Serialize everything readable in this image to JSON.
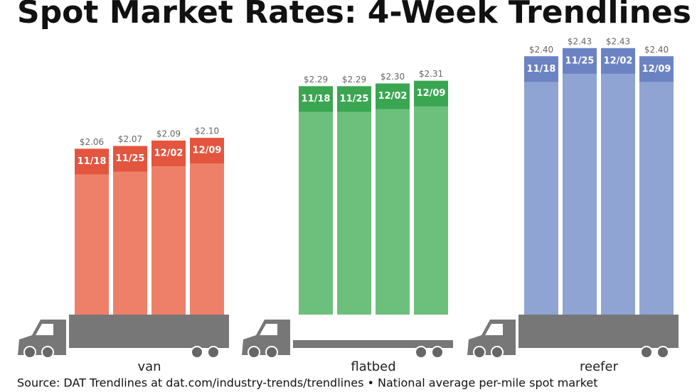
{
  "chart_data": {
    "type": "bar",
    "title": "Spot Market Rates: 4-Week Trendlines",
    "source": "Source: DAT Trendlines at dat.com/industry-trends/trendlines • National average per-mile spot market",
    "categories": [
      "van",
      "flatbed",
      "reefer"
    ],
    "colors": [
      "#ee8069",
      "#6cc07b",
      "#8fa4d2"
    ],
    "band_colors": [
      "#e4553f",
      "#3aa651",
      "#6b83c3"
    ],
    "series": [
      {
        "name": "11/18",
        "values": [
          2.06,
          2.29,
          2.4
        ],
        "value_labels": [
          "$2.06",
          "$2.29",
          "$2.40"
        ]
      },
      {
        "name": "11/25",
        "values": [
          2.07,
          2.29,
          2.43
        ],
        "value_labels": [
          "$2.07",
          "$2.29",
          "$2.43"
        ]
      },
      {
        "name": "12/02",
        "values": [
          2.09,
          2.3,
          2.43
        ],
        "value_labels": [
          "$2.09",
          "$2.30",
          "$2.43"
        ]
      },
      {
        "name": "12/09",
        "values": [
          2.1,
          2.31,
          2.4
        ],
        "value_labels": [
          "$2.10",
          "$2.31",
          "$2.40"
        ]
      }
    ],
    "ylim": [
      1.45,
      2.5
    ]
  }
}
